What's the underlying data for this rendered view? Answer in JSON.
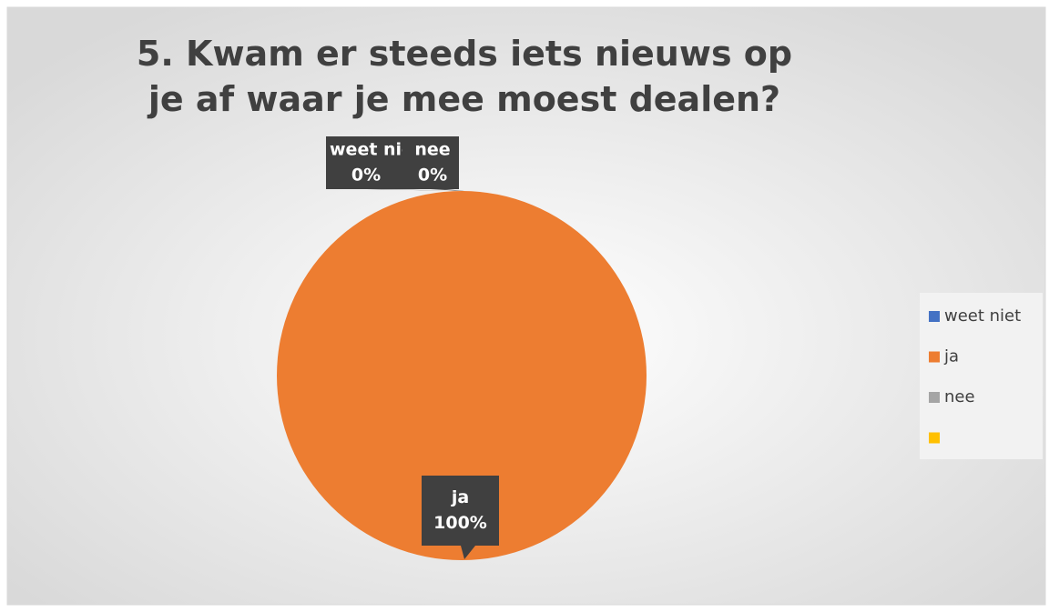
{
  "chart_data": {
    "type": "pie",
    "title": "5. Kwam er steeds iets nieuws op je af waar je mee moest dealen?",
    "categories": [
      "weet niet",
      "ja",
      "nee",
      null
    ],
    "values": [
      0,
      100,
      0,
      0
    ],
    "value_labels": [
      "0%",
      "100%",
      "0%",
      null
    ],
    "colors": [
      "#4472c4",
      "#ed7d31",
      "#a5a5a5",
      "#ffc000"
    ],
    "legend": "right"
  }
}
